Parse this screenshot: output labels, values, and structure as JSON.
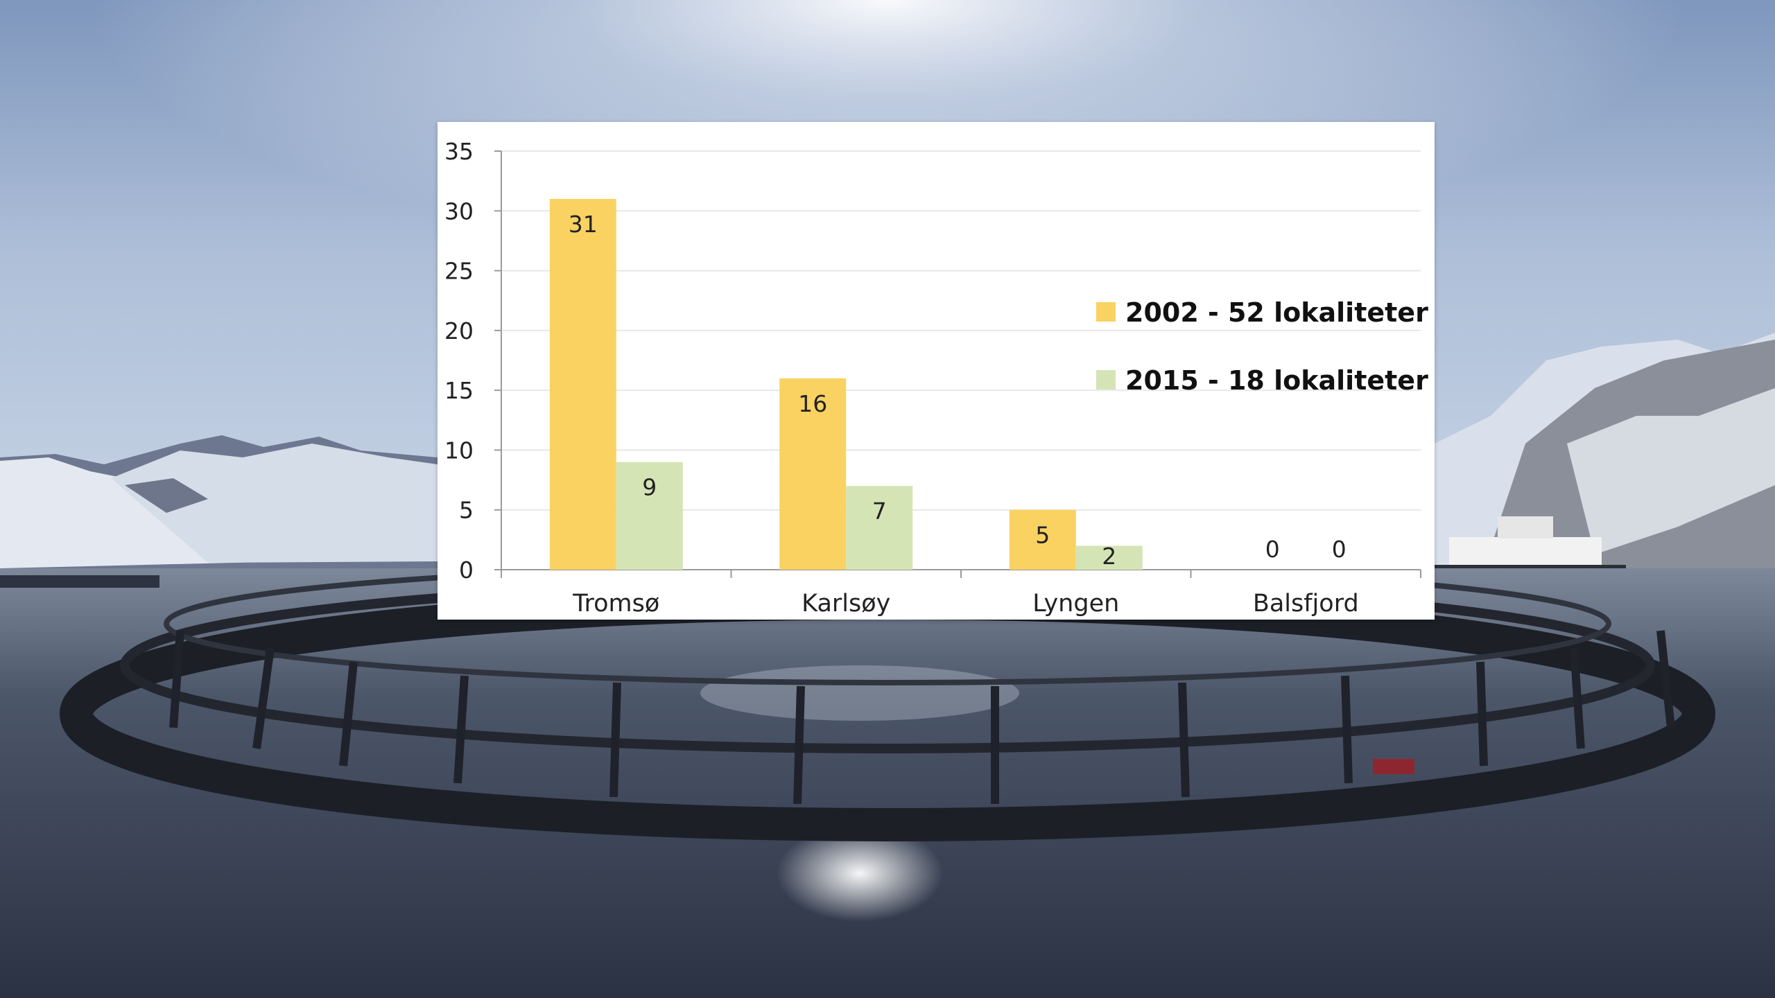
{
  "colors": {
    "series_2002": "#F9D262",
    "series_2015": "#D5E4B5",
    "gridline": "#E8E8E8",
    "axis": "#9A9A9A",
    "panel": "#FFFFFF"
  },
  "background": {
    "description_icon": "fish-farm-pen-fjord-photo"
  },
  "chart_data": {
    "type": "bar",
    "title": "",
    "xlabel": "",
    "ylabel": "",
    "categories": [
      "Tromsø",
      "Karlsøy",
      "Lyngen",
      "Balsfjord"
    ],
    "series": [
      {
        "name": "2002 - 52 lokaliteter",
        "values": [
          31,
          16,
          5,
          0
        ]
      },
      {
        "name": "2015 - 18 lokaliteter",
        "values": [
          9,
          7,
          2,
          0
        ]
      }
    ],
    "ylim": [
      0,
      35
    ],
    "yticks": [
      0,
      5,
      10,
      15,
      20,
      25,
      30,
      35
    ],
    "grid": true,
    "legend_position": "right",
    "data_labels": true
  }
}
